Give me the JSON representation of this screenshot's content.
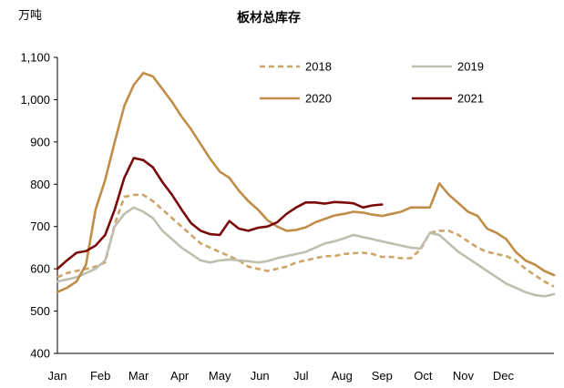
{
  "chart_data": {
    "type": "line",
    "title": "板材总库存",
    "ylabel": "万吨",
    "xlabel": "",
    "ylim": [
      400,
      1100
    ],
    "yticks": [
      "400",
      "500",
      "600",
      "700",
      "800",
      "900",
      "1,000",
      "1,100"
    ],
    "ytick_values": [
      400,
      500,
      600,
      700,
      800,
      900,
      1000,
      1100
    ],
    "xlim": [
      1,
      53
    ],
    "month_labels": [
      "Jan",
      "Feb",
      "Mar",
      "Apr",
      "May",
      "Jun",
      "Jul",
      "Aug",
      "Sep",
      "Oct",
      "Nov",
      "Dec"
    ],
    "month_positions": [
      1,
      5.5,
      9.5,
      13.8,
      18,
      22.2,
      26.5,
      30.8,
      35,
      39.3,
      43.5,
      47.7
    ],
    "grid": false,
    "legend_position": "top-right",
    "series": [
      {
        "name": "2018",
        "color": "#cca566",
        "style": "dashed",
        "x": [
          1,
          2,
          3,
          4,
          5,
          6,
          7,
          8,
          9,
          10,
          11,
          12,
          13,
          14,
          15,
          16,
          17,
          18,
          19,
          20,
          21,
          22,
          23,
          24,
          25,
          26,
          27,
          28,
          29,
          30,
          31,
          32,
          33,
          34,
          35,
          36,
          37,
          38,
          39,
          40,
          41,
          42,
          43,
          44,
          45,
          46,
          47,
          48,
          49,
          50,
          51,
          52,
          53
        ],
        "values": [
          580,
          590,
          595,
          600,
          605,
          615,
          705,
          770,
          775,
          775,
          760,
          740,
          720,
          700,
          680,
          660,
          650,
          640,
          630,
          620,
          605,
          600,
          595,
          600,
          605,
          615,
          620,
          625,
          630,
          630,
          635,
          637,
          638,
          635,
          628,
          628,
          625,
          625,
          645,
          685,
          690,
          690,
          680,
          665,
          650,
          640,
          635,
          630,
          620,
          600,
          585,
          570,
          558
        ]
      },
      {
        "name": "2019",
        "color": "#bfbfb0",
        "style": "solid",
        "x": [
          1,
          2,
          3,
          4,
          5,
          6,
          7,
          8,
          9,
          10,
          11,
          12,
          13,
          14,
          15,
          16,
          17,
          18,
          19,
          20,
          21,
          22,
          23,
          24,
          25,
          26,
          27,
          28,
          29,
          30,
          31,
          32,
          33,
          34,
          35,
          36,
          37,
          38,
          39,
          40,
          41,
          42,
          43,
          44,
          45,
          46,
          47,
          48,
          49,
          50,
          51,
          52,
          53
        ],
        "values": [
          570,
          575,
          580,
          590,
          600,
          620,
          700,
          730,
          745,
          735,
          720,
          690,
          670,
          650,
          635,
          620,
          615,
          620,
          622,
          620,
          618,
          615,
          618,
          625,
          630,
          635,
          640,
          650,
          660,
          665,
          672,
          680,
          675,
          670,
          665,
          660,
          655,
          650,
          648,
          685,
          680,
          660,
          640,
          625,
          610,
          595,
          580,
          565,
          555,
          545,
          538,
          535,
          540
        ]
      },
      {
        "name": "2020",
        "color": "#c08d48",
        "style": "solid",
        "x": [
          1,
          2,
          3,
          4,
          5,
          6,
          7,
          8,
          9,
          10,
          11,
          12,
          13,
          14,
          15,
          16,
          17,
          18,
          19,
          20,
          21,
          22,
          23,
          24,
          25,
          26,
          27,
          28,
          29,
          30,
          31,
          32,
          33,
          34,
          35,
          36,
          37,
          38,
          39,
          40,
          41,
          42,
          43,
          44,
          45,
          46,
          47,
          48,
          49,
          50,
          51,
          52,
          53
        ],
        "values": [
          545,
          555,
          570,
          610,
          740,
          810,
          900,
          985,
          1035,
          1063,
          1055,
          1025,
          995,
          960,
          930,
          895,
          860,
          830,
          815,
          785,
          760,
          740,
          715,
          700,
          690,
          692,
          698,
          710,
          718,
          726,
          730,
          735,
          733,
          728,
          725,
          730,
          735,
          745,
          745,
          745,
          802,
          775,
          755,
          735,
          725,
          695,
          685,
          670,
          640,
          620,
          610,
          595,
          585
        ]
      },
      {
        "name": "2021",
        "color": "#7a0a0a",
        "style": "solid",
        "x": [
          1,
          2,
          3,
          4,
          5,
          6,
          7,
          8,
          9,
          10,
          11,
          12,
          13,
          14,
          15,
          16,
          17,
          18,
          19,
          20,
          21,
          22,
          23,
          24,
          25,
          26,
          27,
          28,
          29,
          30,
          31,
          32,
          33,
          34,
          35
        ],
        "values": [
          600,
          620,
          638,
          642,
          655,
          680,
          740,
          815,
          862,
          857,
          840,
          805,
          775,
          740,
          708,
          690,
          682,
          680,
          713,
          695,
          690,
          697,
          700,
          710,
          730,
          745,
          757,
          757,
          754,
          758,
          757,
          755,
          745,
          750,
          752
        ]
      }
    ]
  }
}
